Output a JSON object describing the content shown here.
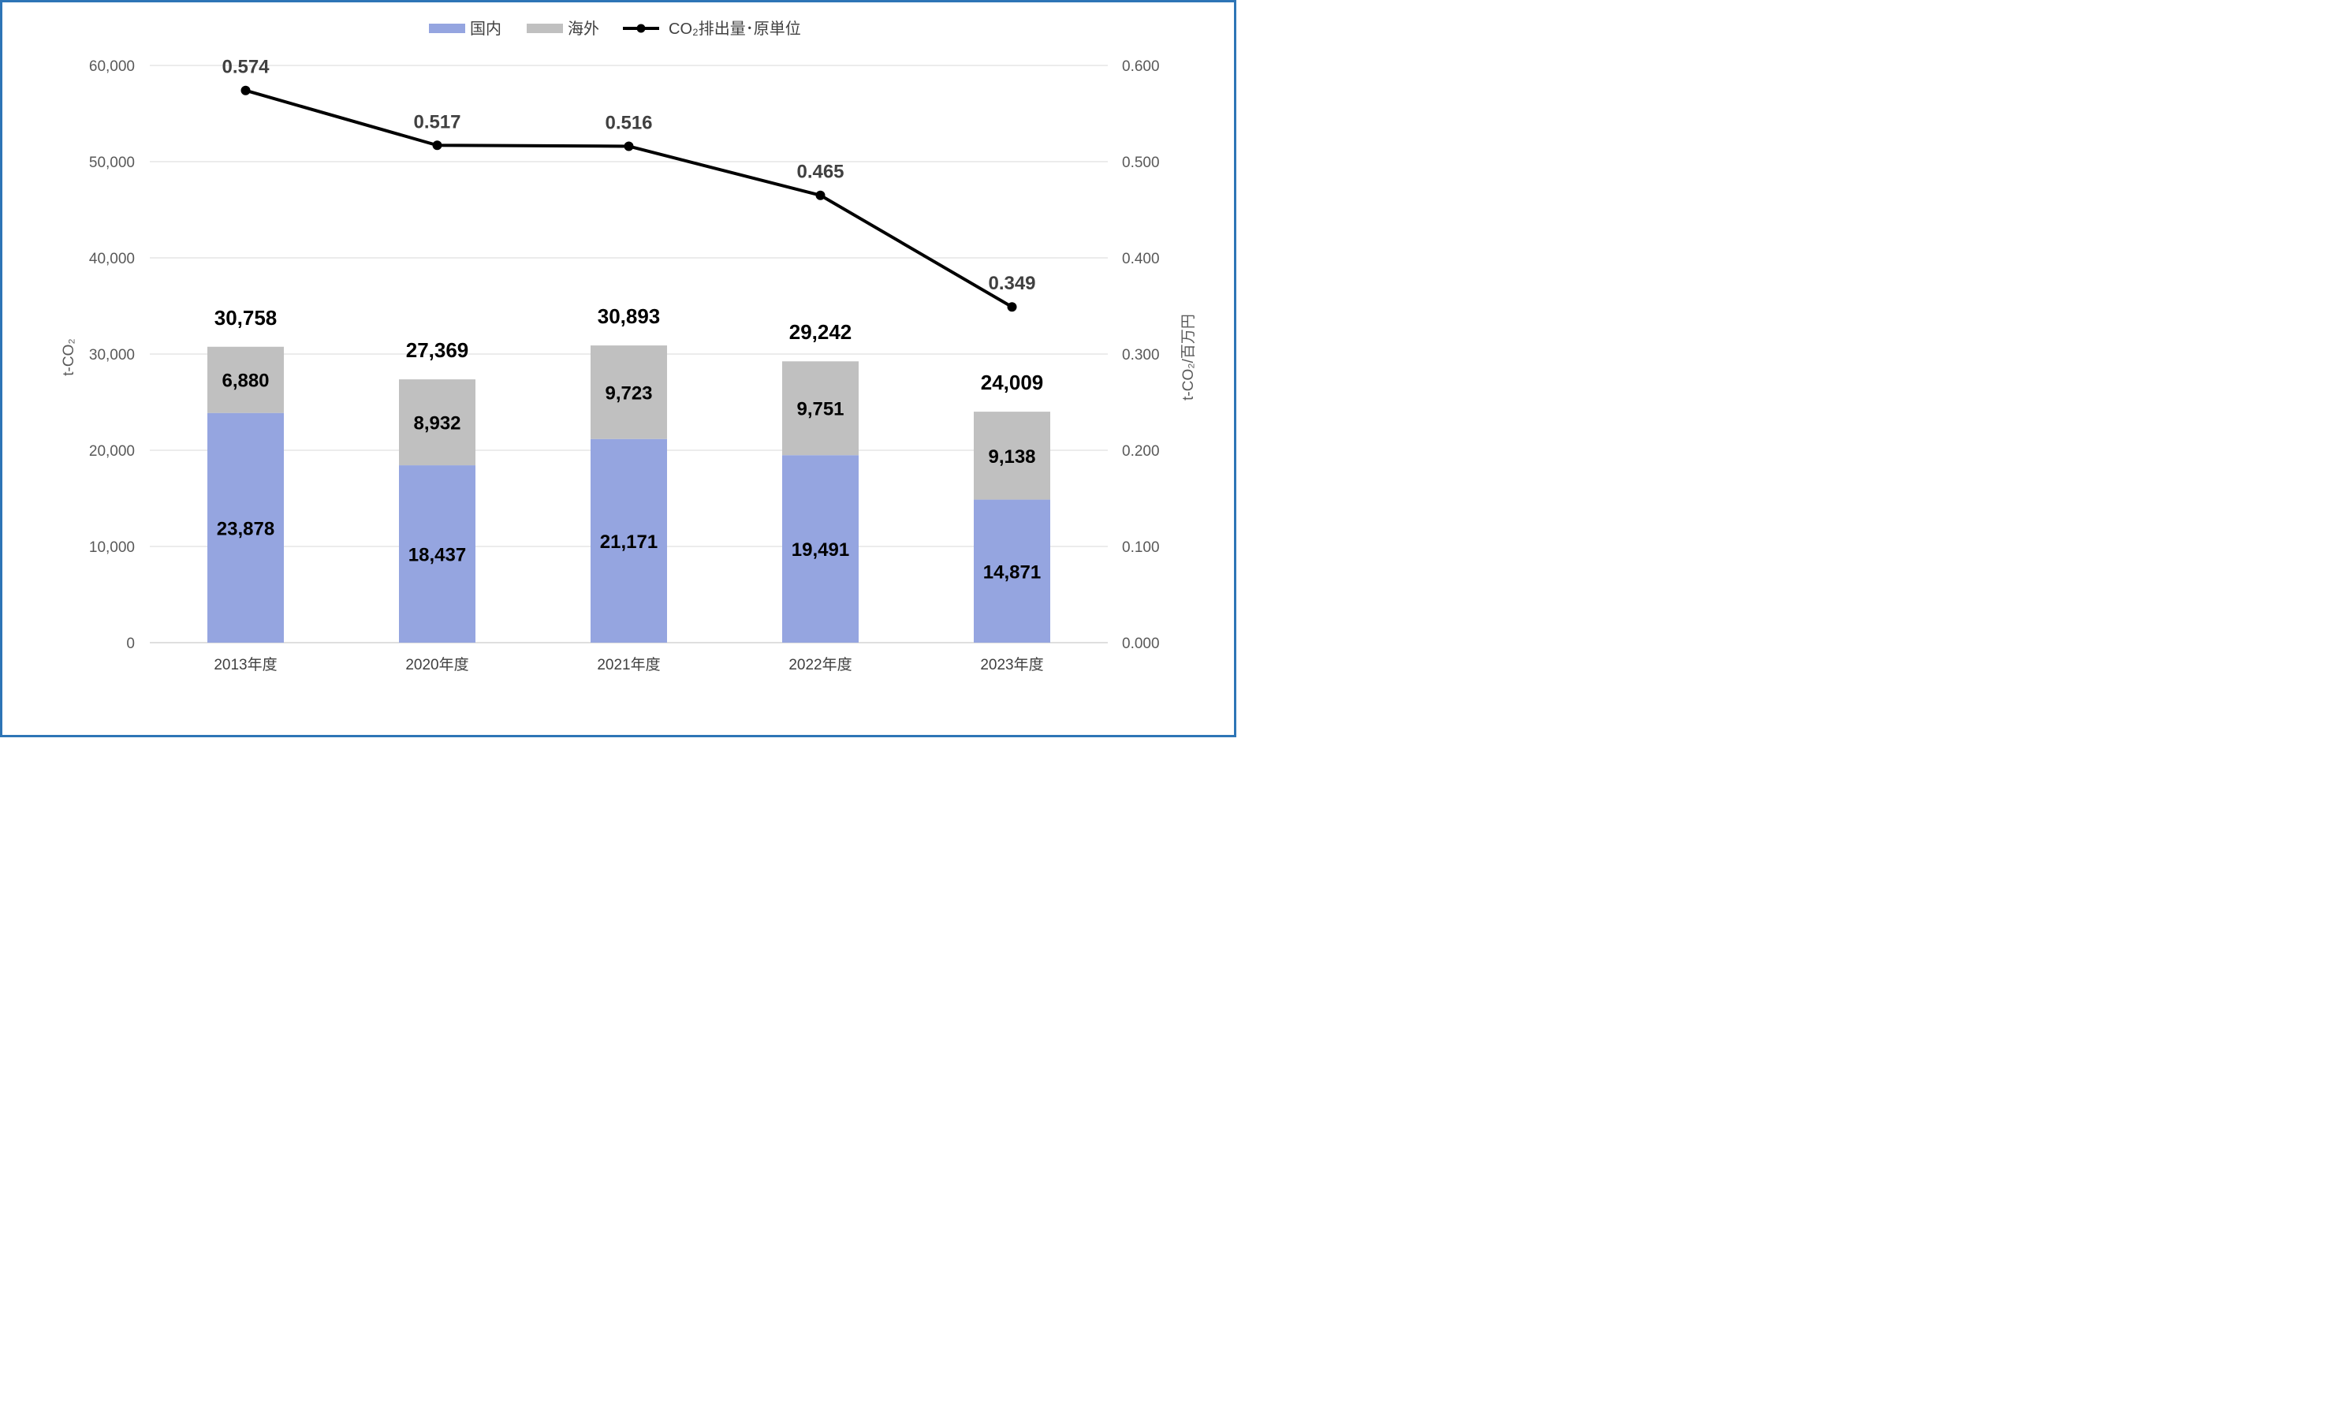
{
  "chart_data": {
    "type": "bar",
    "stacked": true,
    "categories": [
      "2013年度",
      "2020年度",
      "2021年度",
      "2022年度",
      "2023年度"
    ],
    "series": [
      {
        "name": "国内",
        "values": [
          23878,
          18437,
          21171,
          19491,
          14871
        ],
        "color": "#95A5E0"
      },
      {
        "name": "海外",
        "values": [
          6880,
          8932,
          9723,
          9751,
          9138
        ],
        "color": "#C0C0C0"
      }
    ],
    "totals": [
      "30,758",
      "27,369",
      "30,893",
      "29,242",
      "24,009"
    ],
    "bar_labels": {
      "国内": [
        "23,878",
        "18,437",
        "21,171",
        "19,491",
        "14,871"
      ],
      "海外": [
        "6,880",
        "8,932",
        "9,723",
        "9,751",
        "9,138"
      ]
    },
    "line_series": {
      "name": "CO₂排出量･原単位",
      "values": [
        0.574,
        0.517,
        0.516,
        0.465,
        0.349
      ],
      "labels": [
        "0.574",
        "0.517",
        "0.516",
        "0.465",
        "0.349"
      ],
      "color": "#000000",
      "axis": "right"
    },
    "ylabel": "t-CO₂",
    "ylabel_right": "t-CO₂/百万円",
    "ylim": [
      0,
      60000
    ],
    "ylim_right": [
      0,
      0.6
    ],
    "yticks": [
      "0",
      "10,000",
      "20,000",
      "30,000",
      "40,000",
      "50,000",
      "60,000"
    ],
    "yticks_right": [
      "0.000",
      "0.100",
      "0.200",
      "0.300",
      "0.400",
      "0.500",
      "0.600"
    ],
    "grid": true,
    "legend_position": "top-center",
    "frame_color": "#2E75B6",
    "grid_color": "#D9D9D9"
  }
}
